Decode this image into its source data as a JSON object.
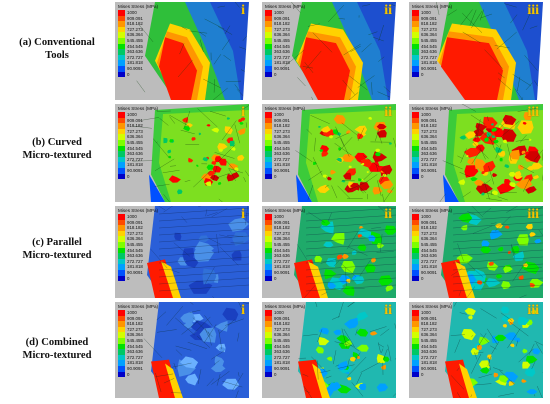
{
  "rows": [
    {
      "id": "a",
      "label_line1": "(a) Conventional",
      "label_line2": "Tools",
      "style": "conv"
    },
    {
      "id": "b",
      "label_line1": "(b) Curved",
      "label_line2": "Micro-textured",
      "style": "curved"
    },
    {
      "id": "c",
      "label_line1": "(c)  Parallel",
      "label_line2": "Micro-textured",
      "style": "parallel"
    },
    {
      "id": "d",
      "label_line1": "(d)  Combined",
      "label_line2": "Micro-textured",
      "style": "combined"
    }
  ],
  "column_markers": [
    "i",
    "ii",
    "iii"
  ],
  "legend": {
    "title": "Mises Stress (MPa)",
    "values": [
      "1000",
      "909.091",
      "818.182",
      "727.273",
      "636.364",
      "545.455",
      "454.545",
      "363.636",
      "272.727",
      "181.818",
      "90.9091",
      "0"
    ],
    "colors": [
      "#ff0000",
      "#ff4b00",
      "#ff9600",
      "#ffd200",
      "#d2ff00",
      "#7dff00",
      "#00e100",
      "#00c864",
      "#00c8c8",
      "#00a0ff",
      "#0050ff",
      "#0000c8"
    ]
  }
}
